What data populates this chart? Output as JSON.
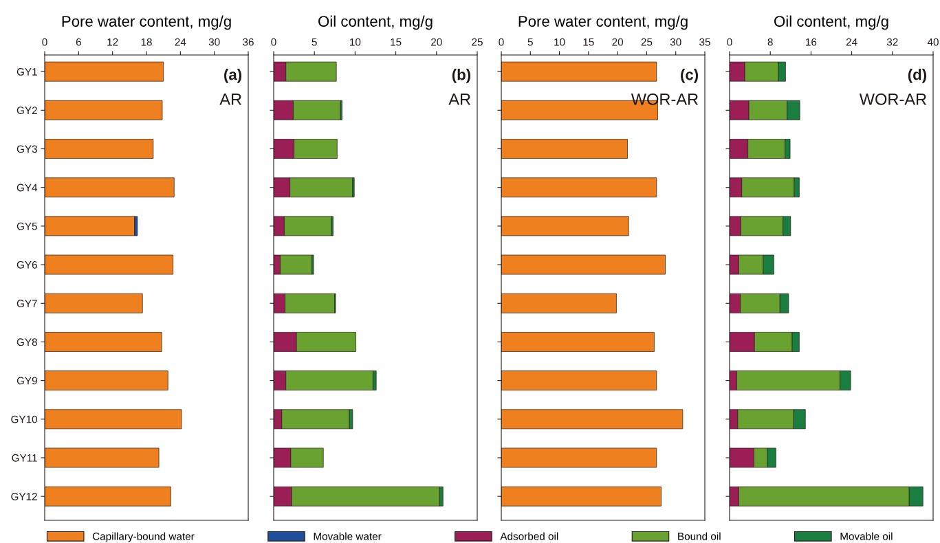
{
  "chart_data": [
    {
      "type": "bar",
      "orientation": "horizontal",
      "stacked": true,
      "xlabel": "Pore water content, mg/g",
      "annotations": [
        "(a)",
        "AR"
      ],
      "legend": "bottom",
      "categories": [
        "GY1",
        "GY2",
        "GY3",
        "GY4",
        "GY5",
        "GY6",
        "GY7",
        "GY8",
        "GY9",
        "GY10",
        "GY11",
        "GY12"
      ],
      "xlim": [
        0,
        36
      ],
      "xticks": [
        0,
        6,
        12,
        18,
        24,
        30,
        36
      ],
      "series": [
        {
          "name": "Capillary-bound water",
          "color": "#ee8020",
          "values": [
            21.0,
            20.8,
            19.2,
            22.9,
            15.9,
            22.7,
            17.3,
            20.7,
            21.8,
            24.2,
            20.2,
            22.3
          ]
        },
        {
          "name": "Movable water",
          "color": "#1f4e9c",
          "values": [
            null,
            null,
            null,
            null,
            0.5,
            null,
            null,
            null,
            null,
            null,
            null,
            null
          ]
        }
      ]
    },
    {
      "type": "bar",
      "orientation": "horizontal",
      "stacked": true,
      "xlabel": "Oil content, mg/g",
      "annotations": [
        "(b)",
        "AR"
      ],
      "legend": "bottom",
      "tick_labels": "x",
      "categories": [
        null,
        null,
        null,
        null,
        null,
        null,
        null,
        null,
        null,
        null,
        null,
        null
      ],
      "xlim": [
        0,
        25
      ],
      "xticks": [
        0,
        5,
        10,
        15,
        20,
        25
      ],
      "series": [
        {
          "name": "Adsorbed oil",
          "color": "#9b1f56",
          "values": [
            1.5,
            2.4,
            2.5,
            2.0,
            1.3,
            0.8,
            1.4,
            2.8,
            1.5,
            1.0,
            2.1,
            2.2
          ]
        },
        {
          "name": "Bound oil",
          "color": "#6aa232",
          "values": [
            6.2,
            5.8,
            5.3,
            7.7,
            5.8,
            3.9,
            6.1,
            7.3,
            10.7,
            8.3,
            4.0,
            18.2
          ]
        },
        {
          "name": "Movable oil",
          "color": "#1a7e40",
          "values": [
            null,
            0.2,
            null,
            0.2,
            0.2,
            0.2,
            0.1,
            null,
            0.4,
            0.4,
            null,
            0.4
          ]
        }
      ]
    },
    {
      "type": "bar",
      "orientation": "horizontal",
      "stacked": true,
      "xlabel": "Pore water content, mg/g",
      "annotations": [
        "(c)",
        "WOR-AR"
      ],
      "legend": "bottom",
      "tick_labels": "x",
      "categories": [
        null,
        null,
        null,
        null,
        null,
        null,
        null,
        null,
        null,
        null,
        null,
        null
      ],
      "xlim": [
        0,
        35
      ],
      "xticks": [
        0,
        5,
        10,
        15,
        20,
        25,
        30,
        35
      ],
      "series": [
        {
          "name": "Capillary-bound water",
          "color": "#ee8020",
          "values": [
            26.7,
            26.9,
            21.7,
            26.7,
            21.9,
            28.2,
            19.8,
            26.3,
            26.7,
            31.2,
            26.7,
            27.5
          ]
        }
      ]
    },
    {
      "type": "bar",
      "orientation": "horizontal",
      "stacked": true,
      "xlabel": "Oil content, mg/g",
      "annotations": [
        "(d)",
        "WOR-AR"
      ],
      "legend": "bottom",
      "tick_labels": "x",
      "categories": [
        null,
        null,
        null,
        null,
        null,
        null,
        null,
        null,
        null,
        null,
        null,
        null
      ],
      "xlim": [
        0,
        40
      ],
      "xticks": [
        0,
        8,
        16,
        24,
        32,
        40
      ],
      "series": [
        {
          "name": "Adsorbed oil",
          "color": "#9b1f56",
          "values": [
            3.0,
            3.8,
            3.6,
            2.4,
            2.2,
            1.8,
            2.1,
            4.9,
            1.4,
            1.6,
            4.8,
            1.8
          ]
        },
        {
          "name": "Bound oil",
          "color": "#6aa232",
          "values": [
            6.6,
            7.5,
            7.3,
            10.3,
            8.3,
            4.8,
            7.8,
            7.4,
            20.3,
            11.0,
            2.6,
            33.5
          ]
        },
        {
          "name": "Movable oil",
          "color": "#1a7e40",
          "values": [
            1.4,
            2.5,
            1.0,
            1.0,
            1.5,
            2.1,
            1.7,
            1.4,
            2.1,
            2.3,
            1.7,
            2.7
          ]
        }
      ]
    }
  ]
}
